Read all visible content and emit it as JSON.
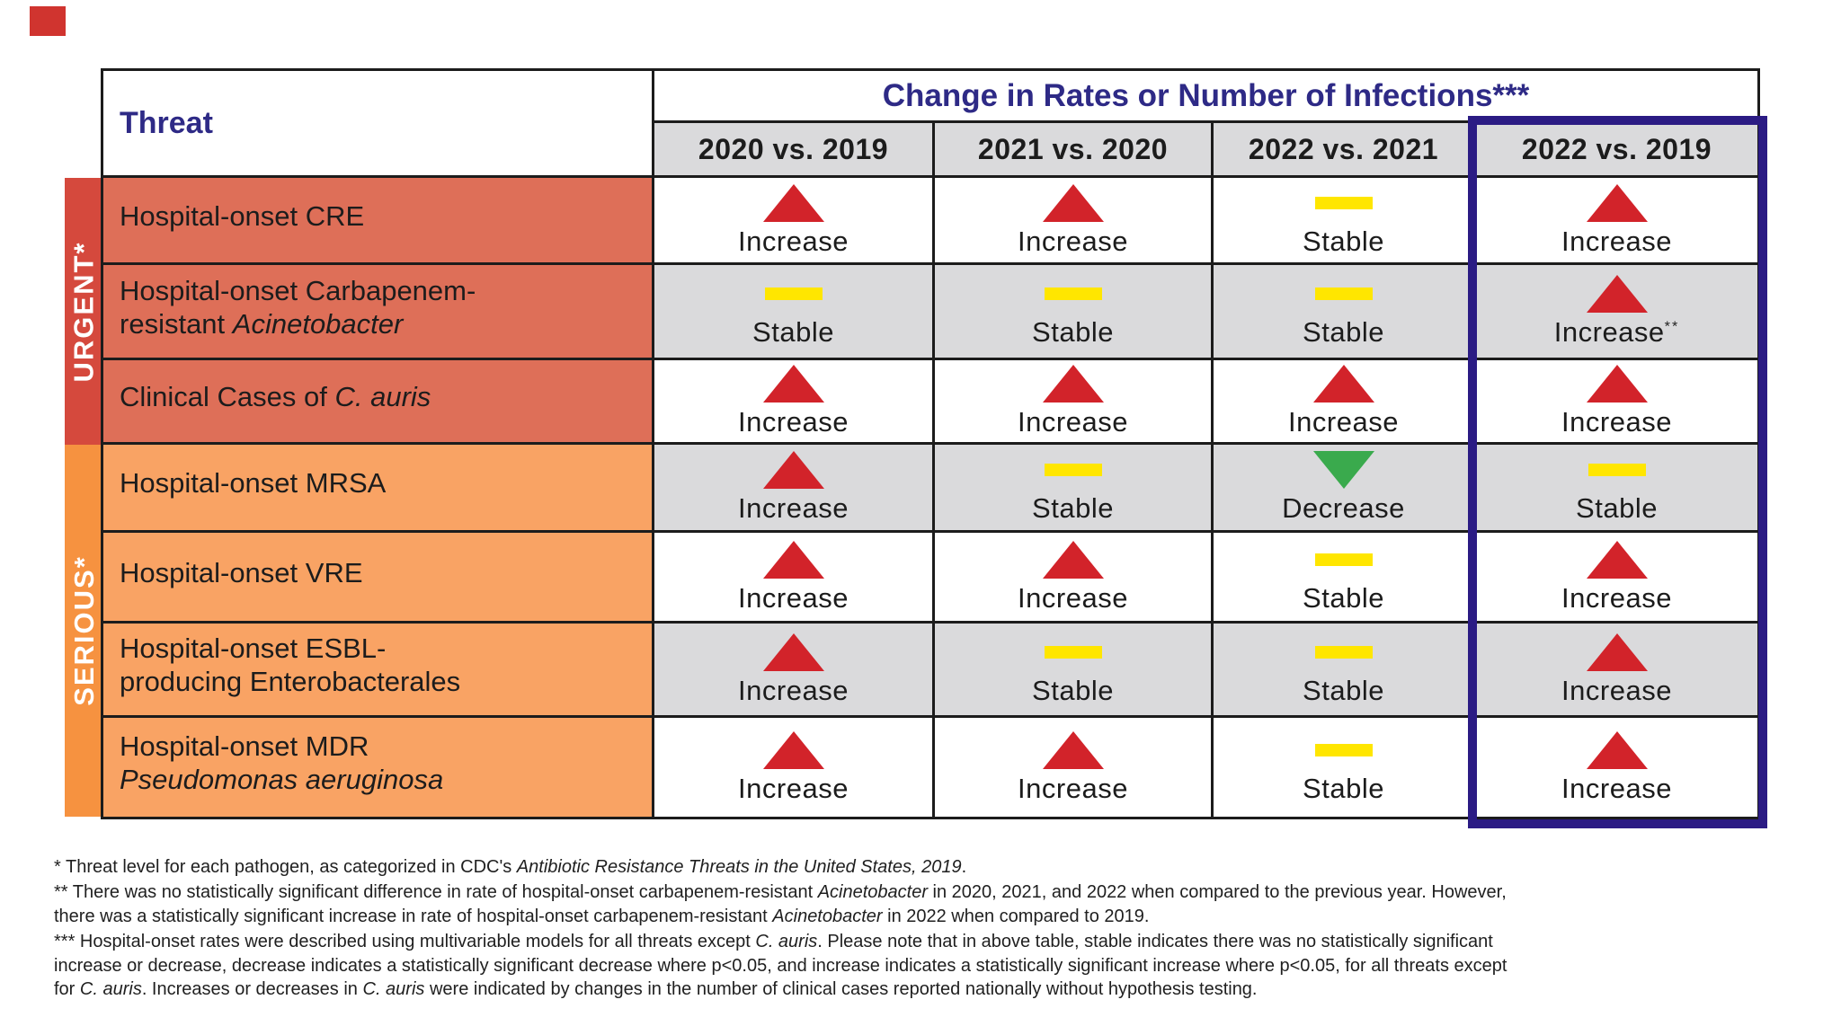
{
  "header": {
    "threat_label": "Threat",
    "change_title": "Change in Rates or Number of Infections***",
    "columns": [
      "2020 vs. 2019",
      "2021 vs. 2020",
      "2022 vs. 2021",
      "2022 vs. 2019"
    ]
  },
  "threat_levels": [
    {
      "label": "URGENT*"
    },
    {
      "label": "SERIOUS*"
    }
  ],
  "rows": [
    {
      "level": "URGENT*",
      "threat_pre": "Hospital-onset CRE",
      "threat_italic": "",
      "cells": [
        {
          "dir": "increase",
          "label": "Increase",
          "icon": "increase-icon"
        },
        {
          "dir": "increase",
          "label": "Increase",
          "icon": "increase-icon"
        },
        {
          "dir": "stable",
          "label": "Stable",
          "icon": "stable-icon"
        },
        {
          "dir": "increase",
          "label": "Increase",
          "icon": "increase-icon"
        }
      ]
    },
    {
      "level": "URGENT*",
      "threat_pre": "Hospital-onset Carbapenem-\nresistant ",
      "threat_italic": "Acinetobacter",
      "cells": [
        {
          "dir": "stable",
          "label": "Stable",
          "icon": "stable-icon"
        },
        {
          "dir": "stable",
          "label": "Stable",
          "icon": "stable-icon"
        },
        {
          "dir": "stable",
          "label": "Stable",
          "icon": "stable-icon"
        },
        {
          "dir": "increase",
          "label": "Increase",
          "sup": "**",
          "icon": "increase-icon"
        }
      ]
    },
    {
      "level": "URGENT*",
      "threat_pre": "Clinical Cases of ",
      "threat_italic": "C. auris",
      "cells": [
        {
          "dir": "increase",
          "label": "Increase",
          "icon": "increase-icon"
        },
        {
          "dir": "increase",
          "label": "Increase",
          "icon": "increase-icon"
        },
        {
          "dir": "increase",
          "label": "Increase",
          "icon": "increase-icon"
        },
        {
          "dir": "increase",
          "label": "Increase",
          "icon": "increase-icon"
        }
      ]
    },
    {
      "level": "SERIOUS*",
      "threat_pre": "Hospital-onset MRSA",
      "threat_italic": "",
      "cells": [
        {
          "dir": "increase",
          "label": "Increase",
          "icon": "increase-icon"
        },
        {
          "dir": "stable",
          "label": "Stable",
          "icon": "stable-icon"
        },
        {
          "dir": "decrease",
          "label": "Decrease",
          "icon": "decrease-icon"
        },
        {
          "dir": "stable",
          "label": "Stable",
          "icon": "stable-icon"
        }
      ]
    },
    {
      "level": "SERIOUS*",
      "threat_pre": "Hospital-onset VRE",
      "threat_italic": "",
      "cells": [
        {
          "dir": "increase",
          "label": "Increase",
          "icon": "increase-icon"
        },
        {
          "dir": "increase",
          "label": "Increase",
          "icon": "increase-icon"
        },
        {
          "dir": "stable",
          "label": "Stable",
          "icon": "stable-icon"
        },
        {
          "dir": "increase",
          "label": "Increase",
          "icon": "increase-icon"
        }
      ]
    },
    {
      "level": "SERIOUS*",
      "threat_pre": "Hospital-onset ESBL-\nproducing Enterobacterales",
      "threat_italic": "",
      "cells": [
        {
          "dir": "increase",
          "label": "Increase",
          "icon": "increase-icon"
        },
        {
          "dir": "stable",
          "label": "Stable",
          "icon": "stable-icon"
        },
        {
          "dir": "stable",
          "label": "Stable",
          "icon": "stable-icon"
        },
        {
          "dir": "increase",
          "label": "Increase",
          "icon": "increase-icon"
        }
      ]
    },
    {
      "level": "SERIOUS*",
      "threat_pre": "Hospital-onset MDR\n",
      "threat_italic": "Pseudomonas aeruginosa",
      "cells": [
        {
          "dir": "increase",
          "label": "Increase",
          "icon": "increase-icon"
        },
        {
          "dir": "increase",
          "label": "Increase",
          "icon": "increase-icon"
        },
        {
          "dir": "stable",
          "label": "Stable",
          "icon": "stable-icon"
        },
        {
          "dir": "increase",
          "label": "Increase",
          "icon": "increase-icon"
        }
      ]
    }
  ],
  "footnotes": {
    "f1": [
      {
        "t": "* Threat level for each pathogen, as categorized in CDC's "
      },
      {
        "t": "Antibiotic Resistance Threats in the United States, 2019",
        "i": true
      },
      {
        "t": "."
      }
    ],
    "f2": [
      {
        "t": "** There was no statistically significant difference in rate of hospital-onset carbapenem-resistant "
      },
      {
        "t": "Acinetobacter",
        "i": true
      },
      {
        "t": " in 2020, 2021, and 2022 when compared to the previous year. However,\nthere was a statistically significant increase in rate of hospital-onset carbapenem-resistant "
      },
      {
        "t": "Acinetobacter",
        "i": true
      },
      {
        "t": " in 2022 when compared to 2019."
      }
    ],
    "f3": [
      {
        "t": "*** Hospital-onset rates were described using multivariable models for all threats except "
      },
      {
        "t": "C. auris",
        "i": true
      },
      {
        "t": ". Please note that in above table, stable indicates there was no statistically significant\nincrease or decrease, decrease indicates a statistically significant decrease where p<0.05, and increase indicates a statistically significant increase where p<0.05, for all threats except\nfor "
      },
      {
        "t": "C. auris",
        "i": true
      },
      {
        "t": ". Increases or decreases in "
      },
      {
        "t": "C. auris",
        "i": true
      },
      {
        "t": " were indicated by changes in the number of clinical cases reported nationally without hypothesis testing."
      }
    ]
  },
  "colors": {
    "navy": "#2b1b84",
    "heading": "#2e2a86",
    "red": "#d2232a",
    "green": "#3aaa4d",
    "yellow": "#ffe600",
    "urgent_band": "#d5493d",
    "urgent_cell": "#de6f58",
    "serious_band": "#f69240",
    "serious_cell": "#f9a364",
    "gray_cell": "#dadadc",
    "border_black": "#1c1c1c",
    "logo_red": "#d0342f"
  },
  "chart_data": {
    "type": "table",
    "title": "Change in Rates or Number of Infections***",
    "row_header": "Threat",
    "columns": [
      "2020 vs. 2019",
      "2021 vs. 2020",
      "2022 vs. 2021",
      "2022 vs. 2019"
    ],
    "rows": [
      {
        "threat_level": "URGENT*",
        "threat": "Hospital-onset CRE",
        "values": [
          "Increase",
          "Increase",
          "Stable",
          "Increase"
        ]
      },
      {
        "threat_level": "URGENT*",
        "threat": "Hospital-onset Carbapenem-resistant Acinetobacter",
        "values": [
          "Stable",
          "Stable",
          "Stable",
          "Increase**"
        ]
      },
      {
        "threat_level": "URGENT*",
        "threat": "Clinical Cases of C. auris",
        "values": [
          "Increase",
          "Increase",
          "Increase",
          "Increase"
        ]
      },
      {
        "threat_level": "SERIOUS*",
        "threat": "Hospital-onset MRSA",
        "values": [
          "Increase",
          "Stable",
          "Decrease",
          "Stable"
        ]
      },
      {
        "threat_level": "SERIOUS*",
        "threat": "Hospital-onset VRE",
        "values": [
          "Increase",
          "Increase",
          "Stable",
          "Increase"
        ]
      },
      {
        "threat_level": "SERIOUS*",
        "threat": "Hospital-onset ESBL-producing Enterobacterales",
        "values": [
          "Increase",
          "Stable",
          "Stable",
          "Increase"
        ]
      },
      {
        "threat_level": "SERIOUS*",
        "threat": "Hospital-onset MDR Pseudomonas aeruginosa",
        "values": [
          "Increase",
          "Increase",
          "Stable",
          "Increase"
        ]
      }
    ],
    "icons": {
      "increase": "red-up-triangle",
      "stable": "yellow-bar",
      "decrease": "green-down-triangle"
    },
    "highlighted_column": "2022 vs. 2019"
  }
}
